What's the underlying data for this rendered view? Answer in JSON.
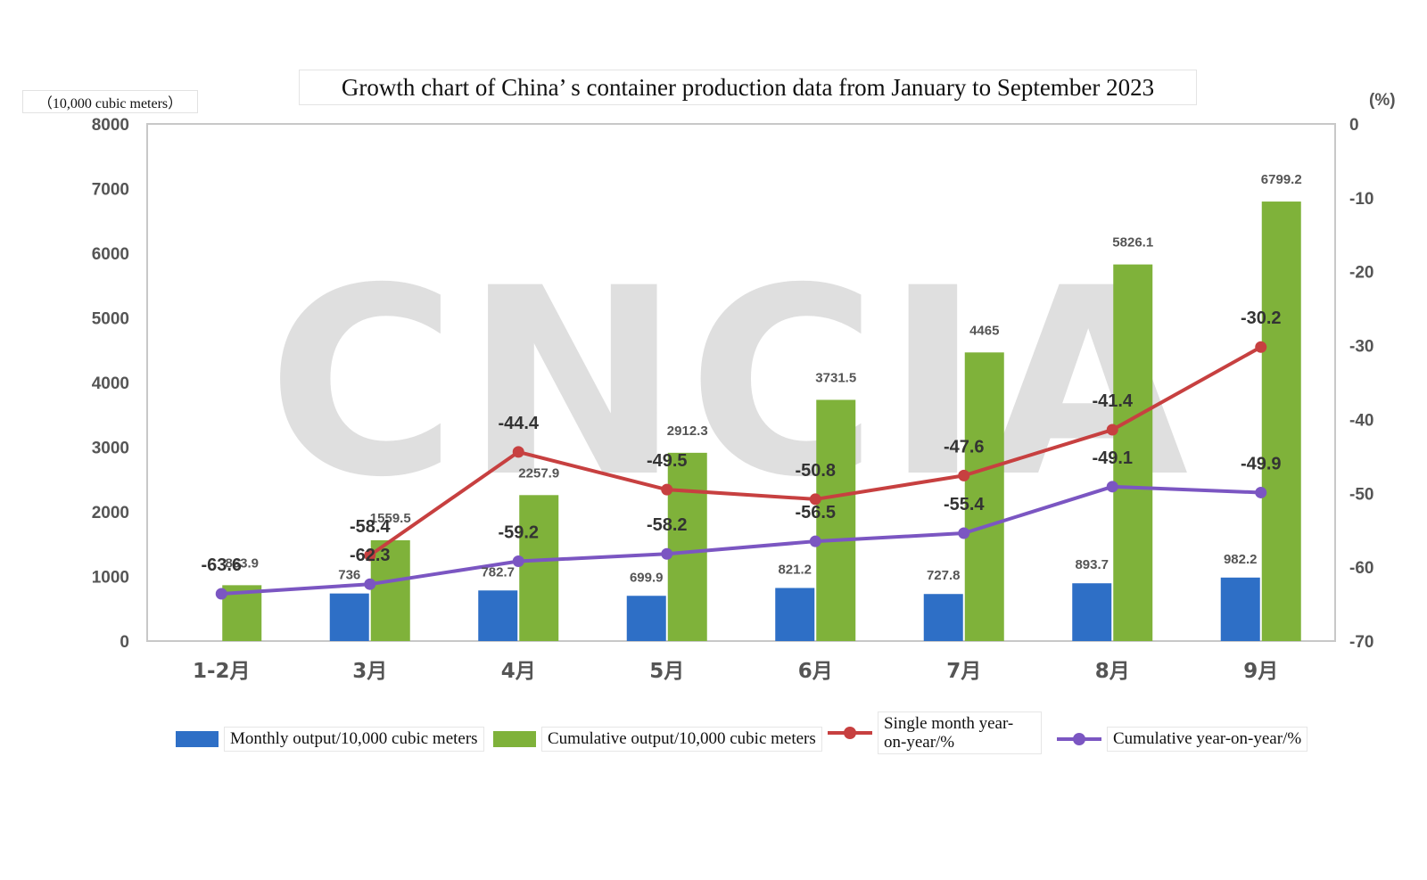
{
  "title": "Growth chart of China’ s container production data from January to September 2023",
  "unit_label": "（10,000 cubic meters）",
  "right_unit_label": "(%)",
  "watermark": "CNCIA",
  "colors": {
    "monthly": "#2e6fc6",
    "cumulative": "#7fb23a",
    "single_yoy": "#c74040",
    "cumulative_yoy": "#7b56c2",
    "axis": "#555555"
  },
  "legend": [
    {
      "label": "Monthly output/10,000 cubic meters",
      "kind": "bar",
      "color": "#2e6fc6"
    },
    {
      "label": "Cumulative output/10,000 cubic meters",
      "kind": "bar",
      "color": "#7fb23a"
    },
    {
      "label": "Single month year-on-year/%",
      "kind": "line",
      "color": "#c74040"
    },
    {
      "label": "Cumulative year-on-year/%",
      "kind": "line",
      "color": "#7b56c2"
    }
  ],
  "chart_data": {
    "type": "bar",
    "categories": [
      "1-2月",
      "3月",
      "4月",
      "5月",
      "6月",
      "7月",
      "8月",
      "9月"
    ],
    "y_left": {
      "min": 0,
      "max": 8000,
      "ticks": [
        0,
        1000,
        2000,
        3000,
        4000,
        5000,
        6000,
        7000,
        8000
      ]
    },
    "y_right": {
      "min": -70,
      "max": 0,
      "ticks": [
        0,
        -10,
        -20,
        -30,
        -40,
        -50,
        -60,
        -70
      ]
    },
    "series": [
      {
        "name": "Monthly output/10,000 cubic meters",
        "kind": "bar",
        "axis": "left",
        "values": [
          null,
          736,
          782.7,
          699.9,
          821.2,
          727.8,
          893.7,
          982.2
        ],
        "labels": [
          "",
          "736",
          "782.7",
          "699.9",
          "821.2",
          "727.8",
          "893.7",
          "982.2"
        ]
      },
      {
        "name": "Cumulative output/10,000 cubic meters",
        "kind": "bar",
        "axis": "left",
        "values": [
          863.9,
          1559.5,
          2257.9,
          2912.3,
          3731.5,
          4465,
          5826.1,
          6799.2
        ],
        "labels": [
          "863.9",
          "1559.5",
          "2257.9",
          "2912.3",
          "3731.5",
          "4465",
          "5826.1",
          "6799.2"
        ]
      },
      {
        "name": "Single month year-on-year/%",
        "kind": "line",
        "axis": "right",
        "values": [
          null,
          -58.4,
          -44.4,
          -49.5,
          -50.8,
          -47.6,
          -41.4,
          -30.2
        ],
        "labels": [
          "",
          "-58.4",
          "-44.4",
          "-49.5",
          "-50.8",
          "-47.6",
          "-41.4",
          "-30.2"
        ]
      },
      {
        "name": "Cumulative year-on-year/%",
        "kind": "line",
        "axis": "right",
        "values": [
          -63.6,
          -62.3,
          -59.2,
          -58.2,
          -56.5,
          -55.4,
          -49.1,
          -49.9
        ],
        "labels": [
          "-63.6",
          "-62.3",
          "-59.2",
          "-58.2",
          "-56.5",
          "-55.4",
          "-49.1",
          "-49.9"
        ]
      }
    ],
    "grid": false,
    "legend_position": "bottom"
  }
}
